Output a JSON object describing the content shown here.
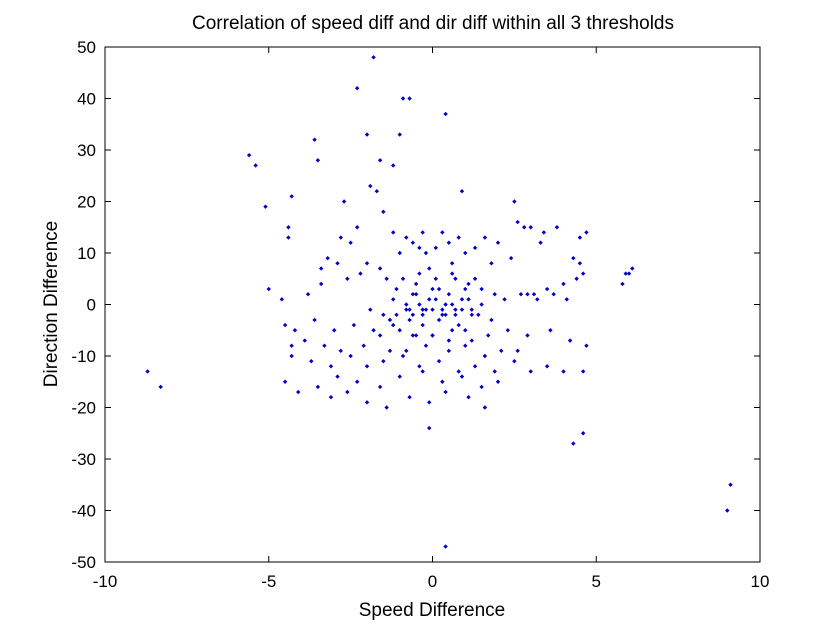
{
  "chart_data": {
    "type": "scatter",
    "title": "Correlation of speed diff and dir diff within all 3 thresholds",
    "xlabel": "Speed Difference",
    "ylabel": "Direction Difference",
    "xlim": [
      -10,
      10
    ],
    "ylim": [
      -50,
      50
    ],
    "xticks": [
      -10,
      -5,
      0,
      5,
      10
    ],
    "yticks": [
      -50,
      -40,
      -30,
      -20,
      -10,
      0,
      10,
      20,
      30,
      40,
      50
    ],
    "grid": false,
    "marker_color": "#0000CC",
    "series": [
      {
        "x": [
          -1.8,
          -2.3,
          -0.9,
          -0.7,
          0.4,
          -2.0,
          -1.0,
          -3.6,
          -1.6,
          -3.5,
          -5.6,
          -5.4,
          -1.2,
          -1.9,
          -1.7,
          0.9,
          -4.3,
          -5.1,
          -2.7,
          -1.5,
          2.5,
          -4.4,
          -4.4,
          -2.3,
          -2.5,
          -2.8,
          2.6,
          2.8,
          3.0,
          3.8,
          3.4,
          3.3,
          4.7,
          4.5,
          -0.3,
          0.3,
          0.8,
          -1.2,
          -0.8,
          -0.6,
          -0.4,
          -1.0,
          -0.2,
          0.1,
          0.5,
          1.0,
          1.3,
          1.6,
          2.0,
          2.4,
          1.8,
          0.6,
          -0.1,
          -1.6,
          -2.0,
          -2.9,
          -3.2,
          -3.4,
          4.3,
          4.5,
          5.8,
          5.9,
          6.0,
          6.1,
          4.6,
          4.4,
          4.0,
          3.5,
          3.1,
          2.9,
          -5.0,
          -4.6,
          -3.8,
          -3.4,
          -2.6,
          -2.2,
          -1.4,
          -0.5,
          0.2,
          0.7,
          1.1,
          1.5,
          1.9,
          2.2,
          2.7,
          3.2,
          3.7,
          4.1,
          -0.3,
          -0.7,
          -1.1,
          -1.5,
          -1.9,
          0.0,
          0.4,
          0.9,
          1.4,
          1.8,
          -4.5,
          -4.2,
          -3.6,
          -3.0,
          -2.4,
          -1.8,
          -1.2,
          -0.6,
          0.0,
          0.6,
          1.2,
          1.7,
          2.3,
          2.9,
          3.6,
          4.2,
          4.7,
          -4.3,
          -3.9,
          -3.3,
          -2.8,
          -2.1,
          -1.3,
          -0.8,
          -0.2,
          0.5,
          1.0,
          1.6,
          2.1,
          2.6,
          -4.3,
          -3.7,
          -3.1,
          -2.5,
          -2.0,
          -1.5,
          -0.9,
          -0.4,
          0.2,
          0.8,
          1.3,
          1.9,
          2.5,
          3.0,
          3.5,
          4.0,
          4.6,
          -8.7,
          -8.3,
          -4.5,
          -4.1,
          -3.5,
          -2.9,
          -2.3,
          -1.6,
          -1.0,
          -0.3,
          0.3,
          0.9,
          1.5,
          2.0,
          -3.1,
          -2.6,
          -2.0,
          -1.4,
          -0.7,
          -0.1,
          0.4,
          1.1,
          1.6,
          -0.1,
          0.4,
          4.3,
          4.6,
          9.1,
          9.0,
          -0.8,
          -0.4,
          0.1,
          0.6,
          1.1,
          -0.6,
          -0.2,
          0.3,
          0.7,
          1.2,
          -1.1,
          -0.5,
          0.0,
          0.5,
          1.0,
          -1.3,
          -0.7,
          -0.3,
          0.2,
          0.8,
          -0.9,
          -0.4,
          0.1,
          0.6,
          1.3,
          -1.6,
          -1.0,
          -0.5,
          0.0,
          0.5,
          1.0,
          -1.2,
          -0.6,
          -0.1,
          0.4,
          0.9,
          1.5,
          -0.8,
          -0.3,
          0.3,
          0.7,
          1.2
        ],
        "y": [
          48,
          42,
          40,
          40,
          37,
          33,
          33,
          32,
          28,
          28,
          29,
          27,
          27,
          23,
          22,
          22,
          21,
          19,
          20,
          18,
          20,
          15,
          13,
          15,
          12,
          13,
          16,
          15,
          15,
          15,
          14,
          12,
          14,
          13,
          14,
          14,
          13,
          14,
          13,
          12,
          11,
          10,
          10,
          11,
          12,
          10,
          11,
          13,
          12,
          9,
          8,
          8,
          7,
          7,
          8,
          8,
          9,
          7,
          9,
          8,
          4,
          6,
          6,
          7,
          6,
          5,
          4,
          3,
          2,
          2,
          3,
          1,
          2,
          4,
          5,
          6,
          5,
          4,
          3,
          5,
          4,
          3,
          2,
          1,
          2,
          1,
          2,
          1,
          -1,
          -1,
          -2,
          -2,
          -1,
          -1,
          -2,
          -1,
          -2,
          -3,
          -4,
          -5,
          -3,
          -5,
          -4,
          -5,
          -4,
          -6,
          -6,
          -5,
          -7,
          -6,
          -5,
          -6,
          -5,
          -7,
          -8,
          -8,
          -7,
          -8,
          -9,
          -8,
          -9,
          -9,
          -8,
          -9,
          -8,
          -10,
          -9,
          -9,
          -10,
          -11,
          -12,
          -10,
          -12,
          -11,
          -10,
          -12,
          -11,
          -13,
          -12,
          -13,
          -11,
          -13,
          -12,
          -13,
          -13,
          -13,
          -16,
          -15,
          -17,
          -16,
          -14,
          -15,
          -16,
          -14,
          -13,
          -15,
          -14,
          -16,
          -15,
          -18,
          -17,
          -19,
          -20,
          -18,
          -19,
          -17,
          -18,
          -20,
          -24,
          -47,
          -27,
          -25,
          -35,
          -40,
          0,
          0,
          1,
          0,
          1,
          -2,
          -1,
          -2,
          -1,
          -2,
          3,
          2,
          3,
          2,
          3,
          -3,
          -3,
          -4,
          -3,
          -4,
          5,
          6,
          5,
          6,
          5,
          -6,
          -5,
          -6,
          -6,
          -7,
          -5,
          1,
          2,
          1,
          0,
          1,
          0,
          -1,
          -2,
          -1,
          -2,
          -1
        ]
      }
    ]
  }
}
